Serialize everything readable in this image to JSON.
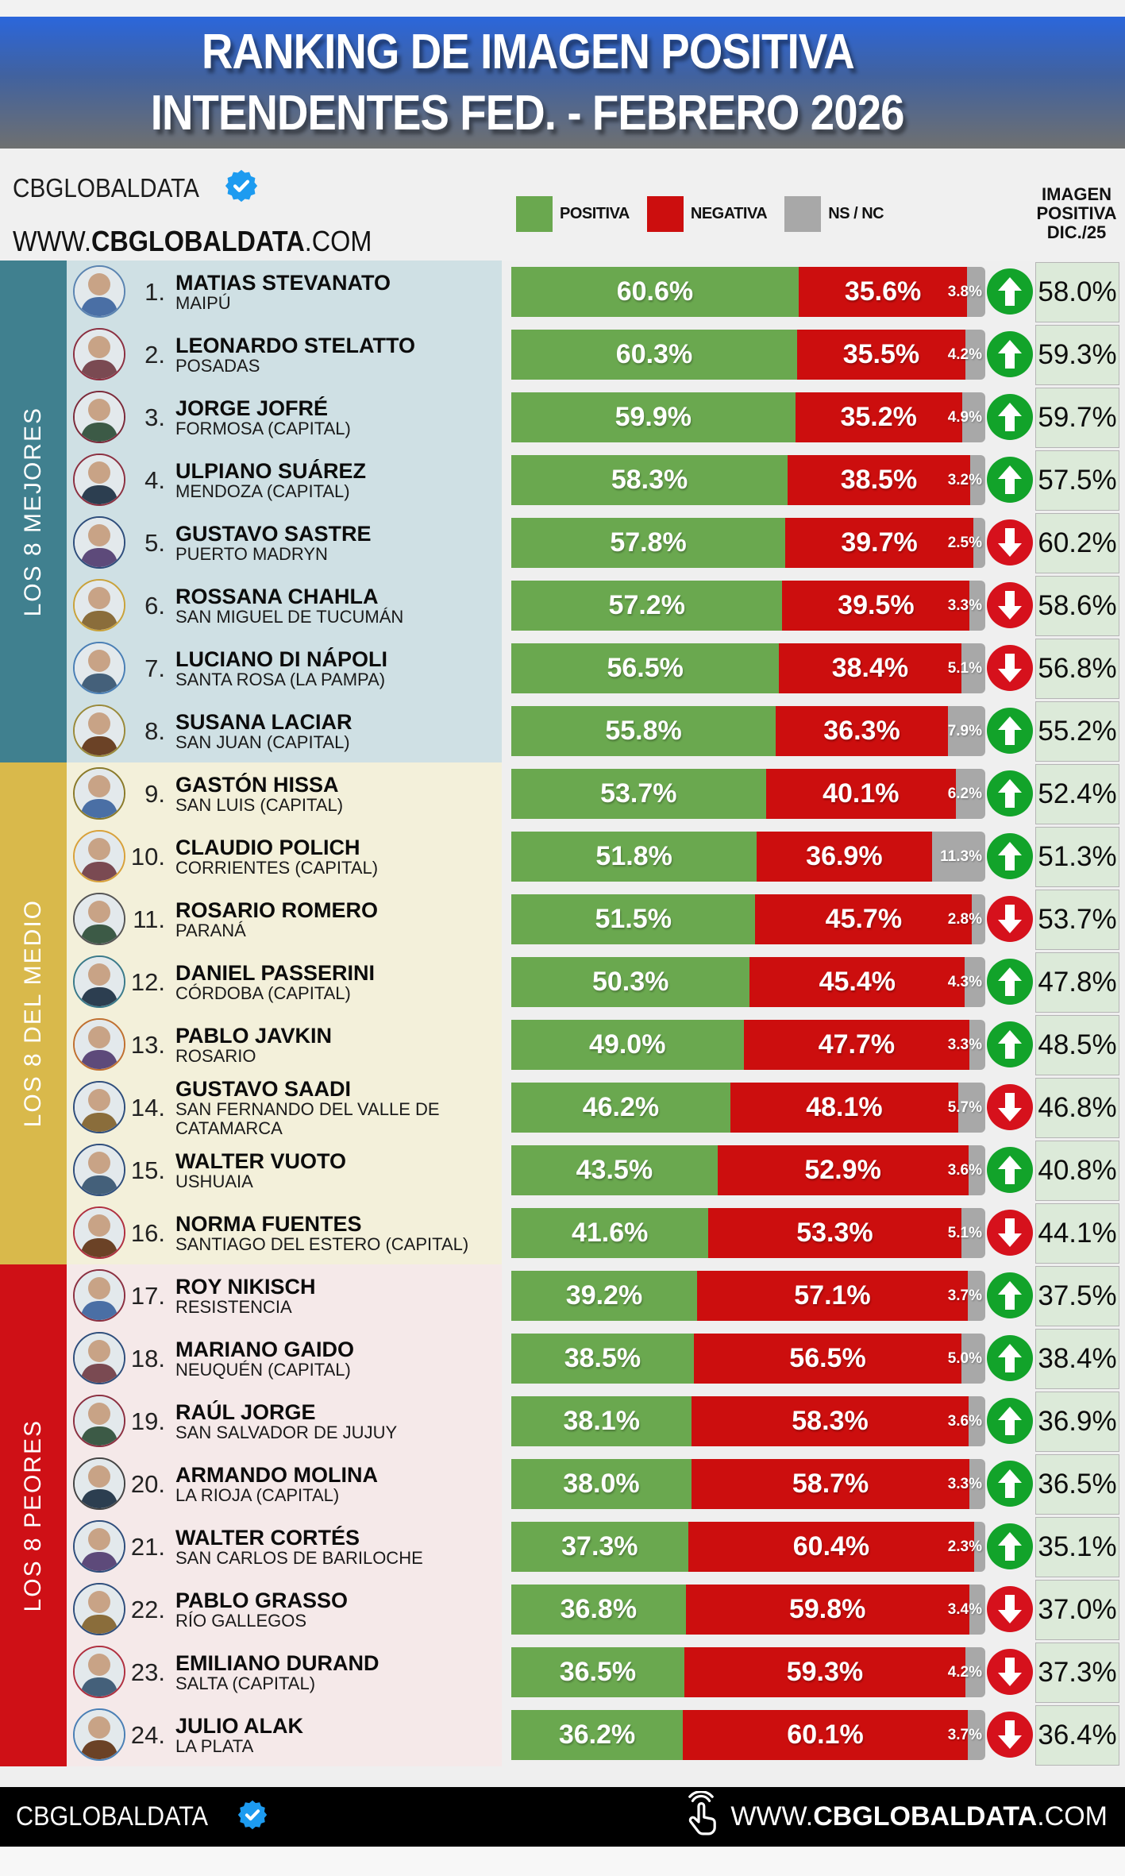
{
  "header": {
    "title_line1": "RANKING DE IMAGEN POSITIVA",
    "title_line2": "INTENDENTES FED. - FEBRERO 2026"
  },
  "brand": {
    "name": "CBGLOBALDATA",
    "badge_icon": "verified-badge",
    "url_prefix": "WWW.",
    "url_brand": "CBGLOBALDATA",
    "url_suffix": ".COM"
  },
  "legend": {
    "positive": {
      "label": "POSITIVA",
      "color": "#6aa84f"
    },
    "negative": {
      "label": "NEGATIVA",
      "color": "#cc0e0e"
    },
    "nsnc": {
      "label": "NS / NC",
      "color": "#a8a8a8"
    }
  },
  "prev_column_header": {
    "line1": "IMAGEN",
    "line2": "POSITIVA",
    "line3": "DIC./25"
  },
  "sections": [
    {
      "label": "LOS 8 MEJORES",
      "sidebar_color": "#40808f",
      "row_bg": "#cfe0e4"
    },
    {
      "label": "LOS 8 DEL MEDIO",
      "sidebar_color": "#d9b94b",
      "row_bg": "#f3f0da"
    },
    {
      "label": "LOS 8 PEORES",
      "sidebar_color": "#cf1016",
      "row_bg": "#f5e9e9"
    }
  ],
  "footer": {
    "brand": "CBGLOBALDATA",
    "badge_icon": "verified-badge",
    "click_icon": "hand-click-icon",
    "url_prefix": "WWW.",
    "url_brand": "CBGLOBALDATA",
    "url_suffix": ".COM"
  },
  "chart_data": {
    "type": "bar",
    "orientation": "horizontal-stacked",
    "series_names": [
      "POSITIVA",
      "NEGATIVA",
      "NS / NC"
    ],
    "colors": {
      "positiva": "#6aa84f",
      "negativa": "#cc0e0e",
      "nsnc": "#a8a8a8",
      "trend_up": "#12a32a",
      "trend_down": "#d6111c"
    },
    "rows": [
      {
        "rank": "1.",
        "name": "MATIAS STEVANATO",
        "city": "MAIPÚ",
        "positive": 60.6,
        "negative": 35.6,
        "nsnc": 3.8,
        "trend": "up",
        "prev": "58.0%",
        "positive_label": "60.6%",
        "negative_label": "35.6%",
        "nsnc_label": "3.8%"
      },
      {
        "rank": "2.",
        "name": "LEONARDO STELATTO",
        "city": "POSADAS",
        "positive": 60.3,
        "negative": 35.5,
        "nsnc": 4.2,
        "trend": "up",
        "prev": "59.3%",
        "positive_label": "60.3%",
        "negative_label": "35.5%",
        "nsnc_label": "4.2%"
      },
      {
        "rank": "3.",
        "name": "JORGE JOFRÉ",
        "city": "FORMOSA (CAPITAL)",
        "positive": 59.9,
        "negative": 35.2,
        "nsnc": 4.9,
        "trend": "up",
        "prev": "59.7%",
        "positive_label": "59.9%",
        "negative_label": "35.2%",
        "nsnc_label": "4.9%"
      },
      {
        "rank": "4.",
        "name": "ULPIANO SUÁREZ",
        "city": "MENDOZA (CAPITAL)",
        "positive": 58.3,
        "negative": 38.5,
        "nsnc": 3.2,
        "trend": "up",
        "prev": "57.5%",
        "positive_label": "58.3%",
        "negative_label": "38.5%",
        "nsnc_label": "3.2%"
      },
      {
        "rank": "5.",
        "name": "GUSTAVO SASTRE",
        "city": "PUERTO MADRYN",
        "positive": 57.8,
        "negative": 39.7,
        "nsnc": 2.5,
        "trend": "down",
        "prev": "60.2%",
        "positive_label": "57.8%",
        "negative_label": "39.7%",
        "nsnc_label": "2.5%"
      },
      {
        "rank": "6.",
        "name": "ROSSANA CHAHLA",
        "city": "SAN MIGUEL DE TUCUMÁN",
        "positive": 57.2,
        "negative": 39.5,
        "nsnc": 3.3,
        "trend": "down",
        "prev": "58.6%",
        "positive_label": "57.2%",
        "negative_label": "39.5%",
        "nsnc_label": "3.3%"
      },
      {
        "rank": "7.",
        "name": "LUCIANO DI NÁPOLI",
        "city": "SANTA ROSA (LA PAMPA)",
        "positive": 56.5,
        "negative": 38.4,
        "nsnc": 5.1,
        "trend": "down",
        "prev": "56.8%",
        "positive_label": "56.5%",
        "negative_label": "38.4%",
        "nsnc_label": "5.1%"
      },
      {
        "rank": "8.",
        "name": "SUSANA LACIAR",
        "city": "SAN JUAN (CAPITAL)",
        "positive": 55.8,
        "negative": 36.3,
        "nsnc": 7.9,
        "trend": "up",
        "prev": "55.2%",
        "positive_label": "55.8%",
        "negative_label": "36.3%",
        "nsnc_label": "7.9%"
      },
      {
        "rank": "9.",
        "name": "GASTÓN HISSA",
        "city": "SAN LUIS (CAPITAL)",
        "positive": 53.7,
        "negative": 40.1,
        "nsnc": 6.2,
        "trend": "up",
        "prev": "52.4%",
        "positive_label": "53.7%",
        "negative_label": "40.1%",
        "nsnc_label": "6.2%"
      },
      {
        "rank": "10.",
        "name": "CLAUDIO POLICH",
        "city": "CORRIENTES (CAPITAL)",
        "positive": 51.8,
        "negative": 36.9,
        "nsnc": 11.3,
        "trend": "up",
        "prev": "51.3%",
        "positive_label": "51.8%",
        "negative_label": "36.9%",
        "nsnc_label": "11.3%"
      },
      {
        "rank": "11.",
        "name": "ROSARIO ROMERO",
        "city": "PARANÁ",
        "positive": 51.5,
        "negative": 45.7,
        "nsnc": 2.8,
        "trend": "down",
        "prev": "53.7%",
        "positive_label": "51.5%",
        "negative_label": "45.7%",
        "nsnc_label": "2.8%"
      },
      {
        "rank": "12.",
        "name": "DANIEL PASSERINI",
        "city": "CÓRDOBA (CAPITAL)",
        "positive": 50.3,
        "negative": 45.4,
        "nsnc": 4.3,
        "trend": "up",
        "prev": "47.8%",
        "positive_label": "50.3%",
        "negative_label": "45.4%",
        "nsnc_label": "4.3%"
      },
      {
        "rank": "13.",
        "name": "PABLO JAVKIN",
        "city": "ROSARIO",
        "positive": 49.0,
        "negative": 47.7,
        "nsnc": 3.3,
        "trend": "up",
        "prev": "48.5%",
        "positive_label": "49.0%",
        "negative_label": "47.7%",
        "nsnc_label": "3.3%"
      },
      {
        "rank": "14.",
        "name": "GUSTAVO SAADI",
        "city": "SAN FERNANDO DEL VALLE DE CATAMARCA",
        "positive": 46.2,
        "negative": 48.1,
        "nsnc": 5.7,
        "trend": "down",
        "prev": "46.8%",
        "positive_label": "46.2%",
        "negative_label": "48.1%",
        "nsnc_label": "5.7%"
      },
      {
        "rank": "15.",
        "name": "WALTER VUOTO",
        "city": "USHUAIA",
        "positive": 43.5,
        "negative": 52.9,
        "nsnc": 3.6,
        "trend": "up",
        "prev": "40.8%",
        "positive_label": "43.5%",
        "negative_label": "52.9%",
        "nsnc_label": "3.6%"
      },
      {
        "rank": "16.",
        "name": "NORMA FUENTES",
        "city": "SANTIAGO DEL ESTERO (CAPITAL)",
        "positive": 41.6,
        "negative": 53.3,
        "nsnc": 5.1,
        "trend": "down",
        "prev": "44.1%",
        "positive_label": "41.6%",
        "negative_label": "53.3%",
        "nsnc_label": "5.1%"
      },
      {
        "rank": "17.",
        "name": "ROY NIKISCH",
        "city": "RESISTENCIA",
        "positive": 39.2,
        "negative": 57.1,
        "nsnc": 3.7,
        "trend": "up",
        "prev": "37.5%",
        "positive_label": "39.2%",
        "negative_label": "57.1%",
        "nsnc_label": "3.7%"
      },
      {
        "rank": "18.",
        "name": "MARIANO GAIDO",
        "city": "NEUQUÉN (CAPITAL)",
        "positive": 38.5,
        "negative": 56.5,
        "nsnc": 5.0,
        "trend": "up",
        "prev": "38.4%",
        "positive_label": "38.5%",
        "negative_label": "56.5%",
        "nsnc_label": "5.0%"
      },
      {
        "rank": "19.",
        "name": "RAÚL JORGE",
        "city": "SAN SALVADOR DE JUJUY",
        "positive": 38.1,
        "negative": 58.3,
        "nsnc": 3.6,
        "trend": "up",
        "prev": "36.9%",
        "positive_label": "38.1%",
        "negative_label": "58.3%",
        "nsnc_label": "3.6%"
      },
      {
        "rank": "20.",
        "name": "ARMANDO MOLINA",
        "city": "LA RIOJA (CAPITAL)",
        "positive": 38.0,
        "negative": 58.7,
        "nsnc": 3.3,
        "trend": "up",
        "prev": "36.5%",
        "positive_label": "38.0%",
        "negative_label": "58.7%",
        "nsnc_label": "3.3%"
      },
      {
        "rank": "21.",
        "name": "WALTER CORTÉS",
        "city": "SAN CARLOS DE BARILOCHE",
        "positive": 37.3,
        "negative": 60.4,
        "nsnc": 2.3,
        "trend": "up",
        "prev": "35.1%",
        "positive_label": "37.3%",
        "negative_label": "60.4%",
        "nsnc_label": "2.3%"
      },
      {
        "rank": "22.",
        "name": "PABLO GRASSO",
        "city": "RÍO GALLEGOS",
        "positive": 36.8,
        "negative": 59.8,
        "nsnc": 3.4,
        "trend": "down",
        "prev": "37.0%",
        "positive_label": "36.8%",
        "negative_label": "59.8%",
        "nsnc_label": "3.4%"
      },
      {
        "rank": "23.",
        "name": "EMILIANO DURAND",
        "city": "SALTA (CAPITAL)",
        "positive": 36.5,
        "negative": 59.3,
        "nsnc": 4.2,
        "trend": "down",
        "prev": "37.3%",
        "positive_label": "36.5%",
        "negative_label": "59.3%",
        "nsnc_label": "4.2%"
      },
      {
        "rank": "24.",
        "name": "JULIO ALAK",
        "city": "LA PLATA",
        "positive": 36.2,
        "negative": 60.1,
        "nsnc": 3.7,
        "trend": "down",
        "prev": "36.4%",
        "positive_label": "36.2%",
        "negative_label": "60.1%",
        "nsnc_label": "3.7%"
      }
    ]
  }
}
